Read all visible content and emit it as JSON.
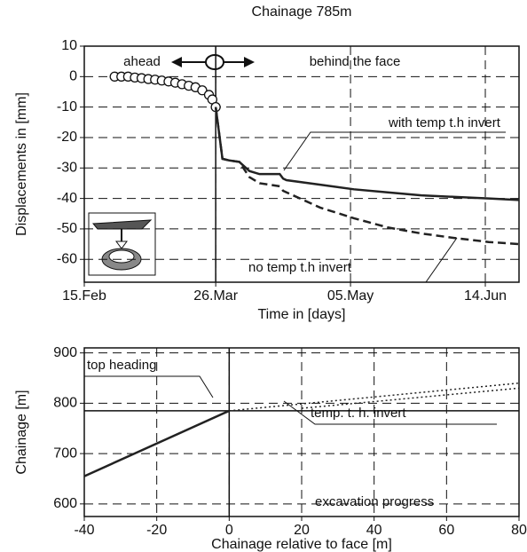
{
  "chart_data": [
    {
      "type": "line",
      "title": "Chainage 785m",
      "y_label": "Displacements in [mm]",
      "x_label": "Time in [days]",
      "xlim": [
        0,
        129
      ],
      "xticks": [
        {
          "value": 0,
          "label": "15.Feb"
        },
        {
          "value": 39,
          "label": "26.Mar"
        },
        {
          "value": 79,
          "label": "05.May"
        },
        {
          "value": 119,
          "label": "14.Jun"
        }
      ],
      "ylim": [
        -67.5,
        10
      ],
      "yticks": [
        10,
        0,
        -10,
        -20,
        -30,
        -40,
        -50,
        -60
      ],
      "grid": true,
      "vlines": [
        39
      ],
      "annotations": [
        "ahead",
        "behind  the face"
      ],
      "series": [
        {
          "marker": "circle",
          "color": "#111111",
          "x": [
            9,
            11,
            13,
            15,
            17,
            19,
            21,
            23,
            25,
            27,
            29,
            31,
            33,
            35,
            37,
            38,
            39
          ],
          "values": [
            0,
            0,
            0,
            -0.3,
            -0.5,
            -0.8,
            -1,
            -1.3,
            -1.6,
            -2,
            -2.5,
            -3,
            -3.5,
            -4.5,
            -6,
            -7.5,
            -10
          ]
        },
        {
          "name": "with temp t.h invert",
          "line_style": "solid",
          "color": "#222222",
          "x": [
            39,
            41,
            43,
            46,
            49,
            52,
            58,
            59,
            60,
            70,
            80,
            90,
            100,
            110,
            120,
            129
          ],
          "values": [
            -10,
            -27,
            -27.5,
            -28,
            -31,
            -32,
            -32,
            -33.5,
            -34,
            -35.5,
            -37,
            -38,
            -39,
            -39.5,
            -40,
            -40.5
          ]
        },
        {
          "name": "no temp t.h invert",
          "line_style": "dashed",
          "color": "#222222",
          "x": [
            39,
            41,
            43,
            46,
            49,
            52,
            58,
            59,
            60,
            70,
            80,
            90,
            100,
            110,
            120,
            129
          ],
          "values": [
            -10,
            -27,
            -27.5,
            -28,
            -33,
            -35,
            -36,
            -37.5,
            -38,
            -43,
            -46.5,
            -49.5,
            -51.5,
            -53,
            -54.3,
            -55
          ]
        }
      ]
    },
    {
      "type": "line",
      "y_label": "Chainage [m]",
      "x_label": "Chainage relative to face [m]",
      "xlim": [
        -40,
        80
      ],
      "xticks": [
        -40,
        -20,
        0,
        20,
        40,
        60,
        80
      ],
      "ylim": [
        575,
        910
      ],
      "yticks": [
        600,
        700,
        800,
        900
      ],
      "grid": true,
      "vlines": [
        0
      ],
      "hlines": [
        785
      ],
      "annotations": [
        "excavation progress"
      ],
      "series": [
        {
          "line_style": "solid",
          "color": "#222222",
          "x": [
            -40,
            0
          ],
          "values": [
            655,
            785
          ]
        },
        {
          "name": "top heading",
          "line_style": "dotted",
          "color": "#222222",
          "x": [
            0,
            80
          ],
          "values": [
            785,
            840
          ]
        },
        {
          "name": "temp. t. h. invert",
          "line_style": "dotted",
          "color": "#222222",
          "x": [
            20,
            80
          ],
          "values": [
            790,
            830
          ]
        }
      ]
    }
  ]
}
